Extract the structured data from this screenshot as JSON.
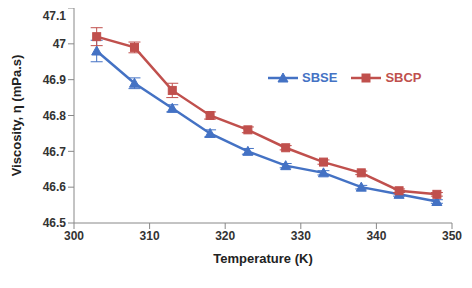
{
  "chart_data": {
    "type": "line",
    "x_label": "Temperature (K)",
    "y_label": "Viscosity, η (mPa.s)",
    "x": [
      303,
      308,
      313,
      318,
      323,
      328,
      333,
      338,
      343,
      348
    ],
    "series": [
      {
        "name": "SBSE",
        "color": "#4472c4",
        "marker": "triangle",
        "values": [
          46.98,
          46.89,
          46.82,
          46.75,
          46.7,
          46.66,
          46.64,
          46.6,
          46.58,
          46.56
        ],
        "errors": [
          0.03,
          0.015,
          0.01,
          0.01,
          0.008,
          0.006,
          0.006,
          0.005,
          0.005,
          0.005
        ]
      },
      {
        "name": "SBCP",
        "color": "#c0504d",
        "marker": "square",
        "values": [
          47.02,
          46.99,
          46.87,
          46.8,
          46.76,
          46.71,
          46.67,
          46.64,
          46.59,
          46.58
        ],
        "errors": [
          0.025,
          0.015,
          0.02,
          0.01,
          0.008,
          0.006,
          0.006,
          0.005,
          0.005,
          0.005
        ]
      }
    ],
    "xlim": [
      300,
      350
    ],
    "xticks": [
      300,
      310,
      320,
      330,
      340,
      350
    ],
    "ylim": [
      46.5,
      47.1
    ],
    "yticks": [
      46.5,
      46.6,
      46.7,
      46.8,
      46.9,
      47,
      47.1
    ],
    "grid": false,
    "legend": "upper right"
  }
}
